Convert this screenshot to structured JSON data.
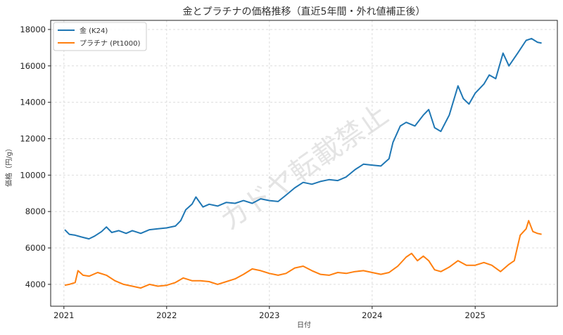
{
  "chart_data": {
    "type": "line",
    "title": "金とプラチナの価格推移（直近5年間・外れ値補正後）",
    "xlabel": "日付",
    "ylabel": "価格（円/g）",
    "watermark": "カドヤ転載禁止",
    "xlim": [
      "2020-11-15",
      "2025-10-20"
    ],
    "ylim": [
      2800,
      18500
    ],
    "x_ticks": [
      "2021",
      "2022",
      "2023",
      "2024",
      "2025"
    ],
    "y_ticks": [
      4000,
      6000,
      8000,
      10000,
      12000,
      14000,
      16000,
      18000
    ],
    "grid": true,
    "legend": "top-left",
    "series": [
      {
        "name": "金 (K24)",
        "color": "#1f77b4",
        "points": [
          [
            "2021-01-04",
            7000
          ],
          [
            "2021-01-20",
            6750
          ],
          [
            "2021-02-10",
            6700
          ],
          [
            "2021-03-05",
            6600
          ],
          [
            "2021-03-31",
            6500
          ],
          [
            "2021-04-20",
            6650
          ],
          [
            "2021-05-15",
            6900
          ],
          [
            "2021-06-01",
            7150
          ],
          [
            "2021-06-20",
            6850
          ],
          [
            "2021-07-15",
            6950
          ],
          [
            "2021-08-10",
            6800
          ],
          [
            "2021-09-01",
            6950
          ],
          [
            "2021-10-01",
            6800
          ],
          [
            "2021-11-01",
            7000
          ],
          [
            "2021-12-01",
            7050
          ],
          [
            "2022-01-01",
            7100
          ],
          [
            "2022-02-01",
            7200
          ],
          [
            "2022-02-20",
            7500
          ],
          [
            "2022-03-10",
            8100
          ],
          [
            "2022-04-01",
            8400
          ],
          [
            "2022-04-15",
            8800
          ],
          [
            "2022-05-10",
            8250
          ],
          [
            "2022-06-01",
            8400
          ],
          [
            "2022-07-01",
            8300
          ],
          [
            "2022-08-01",
            8500
          ],
          [
            "2022-09-01",
            8450
          ],
          [
            "2022-10-01",
            8600
          ],
          [
            "2022-11-01",
            8450
          ],
          [
            "2022-12-01",
            8700
          ],
          [
            "2023-01-01",
            8600
          ],
          [
            "2023-02-01",
            8550
          ],
          [
            "2023-03-01",
            8900
          ],
          [
            "2023-04-01",
            9300
          ],
          [
            "2023-05-01",
            9600
          ],
          [
            "2023-06-01",
            9500
          ],
          [
            "2023-07-01",
            9650
          ],
          [
            "2023-08-01",
            9750
          ],
          [
            "2023-09-01",
            9700
          ],
          [
            "2023-10-01",
            9900
          ],
          [
            "2023-11-01",
            10300
          ],
          [
            "2023-12-01",
            10600
          ],
          [
            "2024-01-01",
            10550
          ],
          [
            "2024-02-01",
            10500
          ],
          [
            "2024-03-01",
            10900
          ],
          [
            "2024-03-15",
            11800
          ],
          [
            "2024-04-10",
            12700
          ],
          [
            "2024-05-01",
            12900
          ],
          [
            "2024-06-01",
            12700
          ],
          [
            "2024-07-01",
            13300
          ],
          [
            "2024-07-20",
            13600
          ],
          [
            "2024-08-10",
            12600
          ],
          [
            "2024-09-01",
            12400
          ],
          [
            "2024-10-01",
            13300
          ],
          [
            "2024-11-01",
            14900
          ],
          [
            "2024-11-20",
            14200
          ],
          [
            "2024-12-10",
            13900
          ],
          [
            "2025-01-01",
            14500
          ],
          [
            "2025-02-01",
            15000
          ],
          [
            "2025-02-20",
            15500
          ],
          [
            "2025-03-15",
            15300
          ],
          [
            "2025-04-10",
            16700
          ],
          [
            "2025-05-01",
            16000
          ],
          [
            "2025-06-01",
            16700
          ],
          [
            "2025-07-01",
            17400
          ],
          [
            "2025-07-20",
            17500
          ],
          [
            "2025-08-10",
            17300
          ],
          [
            "2025-08-25",
            17250
          ]
        ]
      },
      {
        "name": "プラチナ (Pt1000)",
        "color": "#ff7f0e",
        "points": [
          [
            "2021-01-04",
            3950
          ],
          [
            "2021-01-20",
            4000
          ],
          [
            "2021-02-10",
            4100
          ],
          [
            "2021-02-20",
            4750
          ],
          [
            "2021-03-10",
            4500
          ],
          [
            "2021-04-01",
            4450
          ],
          [
            "2021-05-01",
            4650
          ],
          [
            "2021-06-01",
            4500
          ],
          [
            "2021-07-01",
            4200
          ],
          [
            "2021-08-01",
            4000
          ],
          [
            "2021-09-01",
            3900
          ],
          [
            "2021-10-01",
            3800
          ],
          [
            "2021-11-01",
            4000
          ],
          [
            "2021-12-01",
            3900
          ],
          [
            "2022-01-01",
            3950
          ],
          [
            "2022-02-01",
            4100
          ],
          [
            "2022-03-01",
            4350
          ],
          [
            "2022-04-01",
            4200
          ],
          [
            "2022-05-01",
            4200
          ],
          [
            "2022-06-01",
            4150
          ],
          [
            "2022-07-01",
            4000
          ],
          [
            "2022-08-01",
            4150
          ],
          [
            "2022-09-01",
            4300
          ],
          [
            "2022-10-01",
            4550
          ],
          [
            "2022-11-01",
            4850
          ],
          [
            "2022-12-01",
            4750
          ],
          [
            "2023-01-01",
            4600
          ],
          [
            "2023-02-01",
            4500
          ],
          [
            "2023-03-01",
            4600
          ],
          [
            "2023-04-01",
            4900
          ],
          [
            "2023-05-01",
            5000
          ],
          [
            "2023-06-01",
            4750
          ],
          [
            "2023-07-01",
            4550
          ],
          [
            "2023-08-01",
            4500
          ],
          [
            "2023-09-01",
            4650
          ],
          [
            "2023-10-01",
            4600
          ],
          [
            "2023-11-01",
            4700
          ],
          [
            "2023-12-01",
            4750
          ],
          [
            "2024-01-01",
            4650
          ],
          [
            "2024-02-01",
            4550
          ],
          [
            "2024-03-01",
            4650
          ],
          [
            "2024-04-01",
            5000
          ],
          [
            "2024-05-01",
            5500
          ],
          [
            "2024-05-20",
            5700
          ],
          [
            "2024-06-10",
            5300
          ],
          [
            "2024-07-01",
            5550
          ],
          [
            "2024-07-20",
            5300
          ],
          [
            "2024-08-10",
            4800
          ],
          [
            "2024-09-01",
            4700
          ],
          [
            "2024-10-01",
            4950
          ],
          [
            "2024-11-01",
            5300
          ],
          [
            "2024-12-01",
            5050
          ],
          [
            "2025-01-01",
            5050
          ],
          [
            "2025-02-01",
            5200
          ],
          [
            "2025-03-01",
            5050
          ],
          [
            "2025-04-01",
            4700
          ],
          [
            "2025-05-01",
            5100
          ],
          [
            "2025-05-20",
            5300
          ],
          [
            "2025-06-10",
            6700
          ],
          [
            "2025-07-01",
            7050
          ],
          [
            "2025-07-10",
            7500
          ],
          [
            "2025-07-25",
            6900
          ],
          [
            "2025-08-10",
            6800
          ],
          [
            "2025-08-25",
            6750
          ]
        ]
      }
    ]
  }
}
